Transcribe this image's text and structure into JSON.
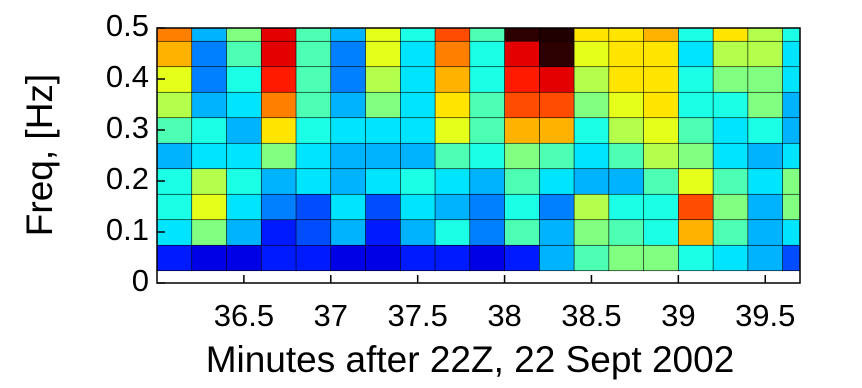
{
  "chart_data": {
    "type": "heatmap",
    "x_label": "Minutes after 22Z, 22 Sept 2002",
    "y_label": "Freq, [Hz]",
    "xlim": [
      36,
      39.7
    ],
    "ylim": [
      0,
      0.5
    ],
    "xticks": [
      36.5,
      37,
      37.5,
      38,
      38.5,
      39,
      39.5
    ],
    "yticks": [
      0,
      0.1,
      0.2,
      0.3,
      0.4,
      0.5
    ],
    "colormap": "jet",
    "clim": [
      0,
      1
    ],
    "x": [
      36.1,
      36.3,
      36.5,
      36.7,
      36.9,
      37.1,
      37.3,
      37.5,
      37.7,
      37.9,
      38.1,
      38.3,
      38.5,
      38.7,
      38.9,
      39.1,
      39.3,
      39.5,
      39.7
    ],
    "y": [
      0.05,
      0.1,
      0.15,
      0.2,
      0.25,
      0.3,
      0.35,
      0.4,
      0.45,
      0.5
    ],
    "z": [
      [
        0.15,
        0.1,
        0.1,
        0.15,
        0.15,
        0.1,
        0.1,
        0.15,
        0.15,
        0.1,
        0.15,
        0.3,
        0.45,
        0.5,
        0.5,
        0.4,
        0.35,
        0.3,
        0.2
      ],
      [
        0.35,
        0.5,
        0.3,
        0.15,
        0.2,
        0.3,
        0.15,
        0.3,
        0.4,
        0.25,
        0.45,
        0.3,
        0.5,
        0.45,
        0.4,
        0.7,
        0.45,
        0.3,
        0.35
      ],
      [
        0.4,
        0.6,
        0.35,
        0.25,
        0.2,
        0.35,
        0.2,
        0.35,
        0.3,
        0.25,
        0.4,
        0.25,
        0.55,
        0.4,
        0.4,
        0.8,
        0.5,
        0.3,
        0.5
      ],
      [
        0.4,
        0.55,
        0.4,
        0.3,
        0.35,
        0.3,
        0.35,
        0.4,
        0.35,
        0.3,
        0.45,
        0.35,
        0.3,
        0.3,
        0.45,
        0.6,
        0.45,
        0.35,
        0.5
      ],
      [
        0.3,
        0.35,
        0.35,
        0.5,
        0.35,
        0.3,
        0.3,
        0.3,
        0.45,
        0.4,
        0.5,
        0.45,
        0.35,
        0.45,
        0.55,
        0.5,
        0.35,
        0.3,
        0.35
      ],
      [
        0.45,
        0.4,
        0.3,
        0.65,
        0.4,
        0.35,
        0.35,
        0.35,
        0.6,
        0.45,
        0.7,
        0.7,
        0.4,
        0.55,
        0.6,
        0.45,
        0.35,
        0.4,
        0.3
      ],
      [
        0.55,
        0.3,
        0.35,
        0.75,
        0.45,
        0.3,
        0.5,
        0.35,
        0.65,
        0.45,
        0.8,
        0.8,
        0.5,
        0.6,
        0.65,
        0.4,
        0.4,
        0.5,
        0.3
      ],
      [
        0.6,
        0.25,
        0.4,
        0.85,
        0.45,
        0.25,
        0.55,
        0.35,
        0.7,
        0.4,
        0.85,
        0.9,
        0.55,
        0.65,
        0.65,
        0.4,
        0.5,
        0.5,
        0.35
      ],
      [
        0.7,
        0.25,
        0.45,
        0.9,
        0.45,
        0.25,
        0.6,
        0.35,
        0.75,
        0.4,
        0.9,
        0.95,
        0.6,
        0.65,
        0.65,
        0.35,
        0.55,
        0.55,
        0.35
      ],
      [
        0.75,
        0.3,
        0.5,
        0.9,
        0.45,
        0.3,
        0.6,
        0.4,
        0.8,
        0.45,
        0.95,
        1.0,
        0.65,
        0.65,
        0.7,
        0.4,
        0.65,
        0.55,
        0.4
      ]
    ]
  }
}
